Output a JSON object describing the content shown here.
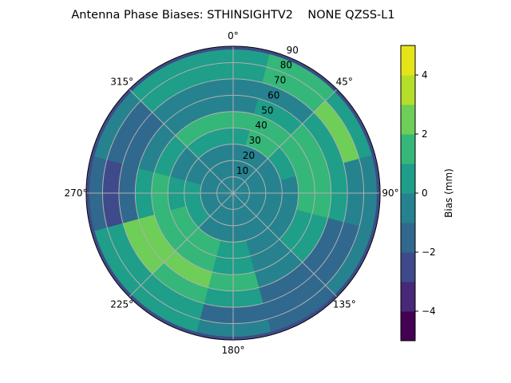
{
  "chart_data": {
    "type": "heatmap",
    "subtype": "polar filled contour",
    "title": "Antenna Phase Biases: STHINSIGHTV2    NONE QZSS-L1",
    "angular_ticks": [
      "0°",
      "45°",
      "90°",
      "135°",
      "180°",
      "225°",
      "270°",
      "315°"
    ],
    "radial_ticks": [
      "10",
      "20",
      "30",
      "40",
      "50",
      "60",
      "70",
      "80",
      "90"
    ],
    "radial_range": [
      0,
      90
    ],
    "grid": true,
    "colormap": "viridis",
    "colorbar": {
      "label": "Bias (mm)",
      "range": [
        -5,
        5
      ],
      "levels": [
        -5,
        -4,
        -3,
        -2,
        -1,
        0,
        1,
        2,
        3,
        4,
        5
      ],
      "ticks": [
        "4",
        "2",
        "0",
        "−2",
        "−4"
      ],
      "tick_values": [
        4,
        2,
        0,
        -2,
        -4
      ],
      "colors": [
        "#440154",
        "#482878",
        "#3e4a89",
        "#31688e",
        "#26828e",
        "#1f9e89",
        "#35b779",
        "#6ece58",
        "#b5de2b",
        "#e5e419"
      ]
    },
    "zenith_centers": [
      5,
      15,
      25,
      35,
      45,
      55,
      65,
      75,
      85
    ],
    "azimuth_centers": [
      0,
      30,
      60,
      90,
      120,
      150,
      180,
      210,
      240,
      270,
      300,
      330
    ],
    "values": [
      [
        -0.5,
        -0.5,
        -0.5,
        -0.5,
        -0.5,
        -0.5,
        -0.5,
        -0.5,
        -0.5,
        -0.5,
        -0.5,
        -0.5
      ],
      [
        -0.5,
        -0.5,
        -0.5,
        -0.5,
        -0.5,
        -0.5,
        -0.5,
        -0.5,
        -0.5,
        -0.5,
        -0.5,
        -0.5
      ],
      [
        -0.5,
        -0.5,
        -0.5,
        -0.5,
        -0.5,
        -0.5,
        -0.5,
        -0.5,
        0.5,
        0.5,
        -0.5,
        -0.5
      ],
      [
        0.5,
        1.5,
        0.5,
        -0.5,
        -0.5,
        -0.5,
        0.5,
        1.5,
        1.5,
        0.5,
        -0.5,
        0.5
      ],
      [
        1.5,
        1.5,
        1.5,
        1.5,
        0.5,
        -0.5,
        0.5,
        1.5,
        1.5,
        1.5,
        0.5,
        1.5
      ],
      [
        -0.5,
        0.5,
        1.5,
        1.5,
        0.5,
        -0.5,
        1.5,
        2.5,
        2.5,
        0.5,
        -0.5,
        -0.5
      ],
      [
        -0.5,
        -0.5,
        0.5,
        0.5,
        -1.5,
        -1.5,
        0.5,
        1.5,
        2.5,
        -1.5,
        -1.5,
        -0.5
      ],
      [
        0.5,
        1.5,
        2.5,
        -0.5,
        -1.5,
        -1.5,
        -1.5,
        0.5,
        0.5,
        -2.5,
        -1.5,
        0.5
      ],
      [
        0.5,
        1.5,
        0.5,
        -0.5,
        -0.5,
        -1.5,
        -0.5,
        0.5,
        0.5,
        -1.5,
        -0.5,
        0.5
      ]
    ]
  }
}
